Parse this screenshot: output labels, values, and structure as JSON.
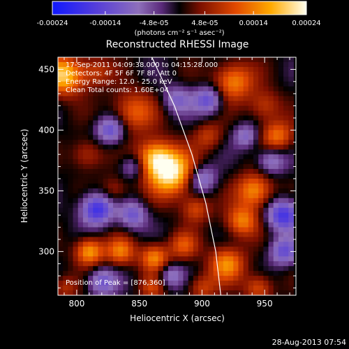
{
  "chart_data": {
    "type": "heatmap",
    "title": "Reconstructed RHESSI Image",
    "xlabel": "Heliocentric X (arcsec)",
    "ylabel": "Heliocentric Y (arcsec)",
    "xlim": [
      785,
      975
    ],
    "ylim": [
      264,
      460
    ],
    "x_ticks": [
      800,
      850,
      900,
      950
    ],
    "y_ticks": [
      300,
      350,
      400,
      450
    ],
    "colorbar": {
      "ticks": [
        -0.00024,
        -0.00014,
        -4.8e-05,
        4.8e-05,
        0.00014,
        0.00024
      ],
      "tick_labels": [
        "-0.00024",
        "-0.00014",
        "-4.8e-05",
        "4.8e-05",
        "0.00014",
        "0.00024"
      ],
      "unit_label": "(photons cm⁻² s⁻¹ asec⁻²)",
      "range": [
        -0.00024,
        0.00024
      ]
    },
    "annotations": [
      "17-Sep-2011 04:09:38.000 to 04:15:28.000",
      "Detectors: 4F 5F 6F 7F 8F, Att 0",
      "Energy Range: 12.0 - 25.0 keV",
      "Clean     Total counts: 1.60E+04"
    ],
    "peak_label": "Position of Peak = [876,360]",
    "peak": {
      "x": 876,
      "y": 360
    },
    "blobs": [
      {
        "x": 875,
        "y": 365,
        "v": 0.00023,
        "r": 13
      },
      {
        "x": 862,
        "y": 378,
        "v": 0.00016,
        "r": 10
      },
      {
        "x": 845,
        "y": 415,
        "v": 0.00012,
        "r": 12
      },
      {
        "x": 790,
        "y": 445,
        "v": 0.0002,
        "r": 11
      },
      {
        "x": 815,
        "y": 448,
        "v": 8e-05,
        "r": 9
      },
      {
        "x": 810,
        "y": 300,
        "v": 0.00017,
        "r": 8
      },
      {
        "x": 835,
        "y": 300,
        "v": 0.00013,
        "r": 8
      },
      {
        "x": 862,
        "y": 295,
        "v": 0.00015,
        "r": 8
      },
      {
        "x": 885,
        "y": 305,
        "v": 0.0001,
        "r": 8
      },
      {
        "x": 942,
        "y": 350,
        "v": 0.00016,
        "r": 10
      },
      {
        "x": 932,
        "y": 325,
        "v": 0.00014,
        "r": 9
      },
      {
        "x": 920,
        "y": 290,
        "v": 0.00015,
        "r": 10
      },
      {
        "x": 945,
        "y": 270,
        "v": 0.00011,
        "r": 8
      },
      {
        "x": 925,
        "y": 440,
        "v": 0.00015,
        "r": 11
      },
      {
        "x": 950,
        "y": 420,
        "v": 9e-05,
        "r": 9
      },
      {
        "x": 960,
        "y": 395,
        "v": 0.00013,
        "r": 9
      },
      {
        "x": 895,
        "y": 335,
        "v": 0.0001,
        "r": 8
      },
      {
        "x": 808,
        "y": 380,
        "v": 8e-05,
        "r": 9
      },
      {
        "x": 830,
        "y": 350,
        "v": 7e-05,
        "r": 8
      },
      {
        "x": 905,
        "y": 395,
        "v": 8e-05,
        "r": 8
      },
      {
        "x": 900,
        "y": 270,
        "v": 9e-05,
        "r": 8
      },
      {
        "x": 790,
        "y": 270,
        "v": 7e-05,
        "r": 7
      },
      {
        "x": 860,
        "y": 270,
        "v": 8e-05,
        "r": 7
      },
      {
        "x": 827,
        "y": 400,
        "v": -0.00014,
        "r": 8
      },
      {
        "x": 816,
        "y": 335,
        "v": -0.00019,
        "r": 9
      },
      {
        "x": 845,
        "y": 330,
        "v": -0.00012,
        "r": 8
      },
      {
        "x": 905,
        "y": 425,
        "v": -0.00014,
        "r": 8
      },
      {
        "x": 965,
        "y": 330,
        "v": -0.00018,
        "r": 9
      },
      {
        "x": 965,
        "y": 300,
        "v": -0.00013,
        "r": 8
      },
      {
        "x": 900,
        "y": 360,
        "v": -0.00012,
        "r": 8
      },
      {
        "x": 880,
        "y": 425,
        "v": -0.0001,
        "r": 8
      },
      {
        "x": 955,
        "y": 375,
        "v": -0.00011,
        "r": 8
      },
      {
        "x": 820,
        "y": 275,
        "v": -0.00012,
        "r": 8
      },
      {
        "x": 875,
        "y": 280,
        "v": -0.0001,
        "r": 7
      },
      {
        "x": 845,
        "y": 370,
        "v": -9e-05,
        "r": 7
      },
      {
        "x": 935,
        "y": 395,
        "v": -0.0001,
        "r": 7
      }
    ],
    "limb": [
      {
        "x": 860,
        "y": 460
      },
      {
        "x": 878,
        "y": 420
      },
      {
        "x": 892,
        "y": 380
      },
      {
        "x": 903,
        "y": 340
      },
      {
        "x": 911,
        "y": 300
      },
      {
        "x": 915,
        "y": 264
      }
    ]
  },
  "footer": {
    "date": "28-Aug-2013 07:54"
  }
}
